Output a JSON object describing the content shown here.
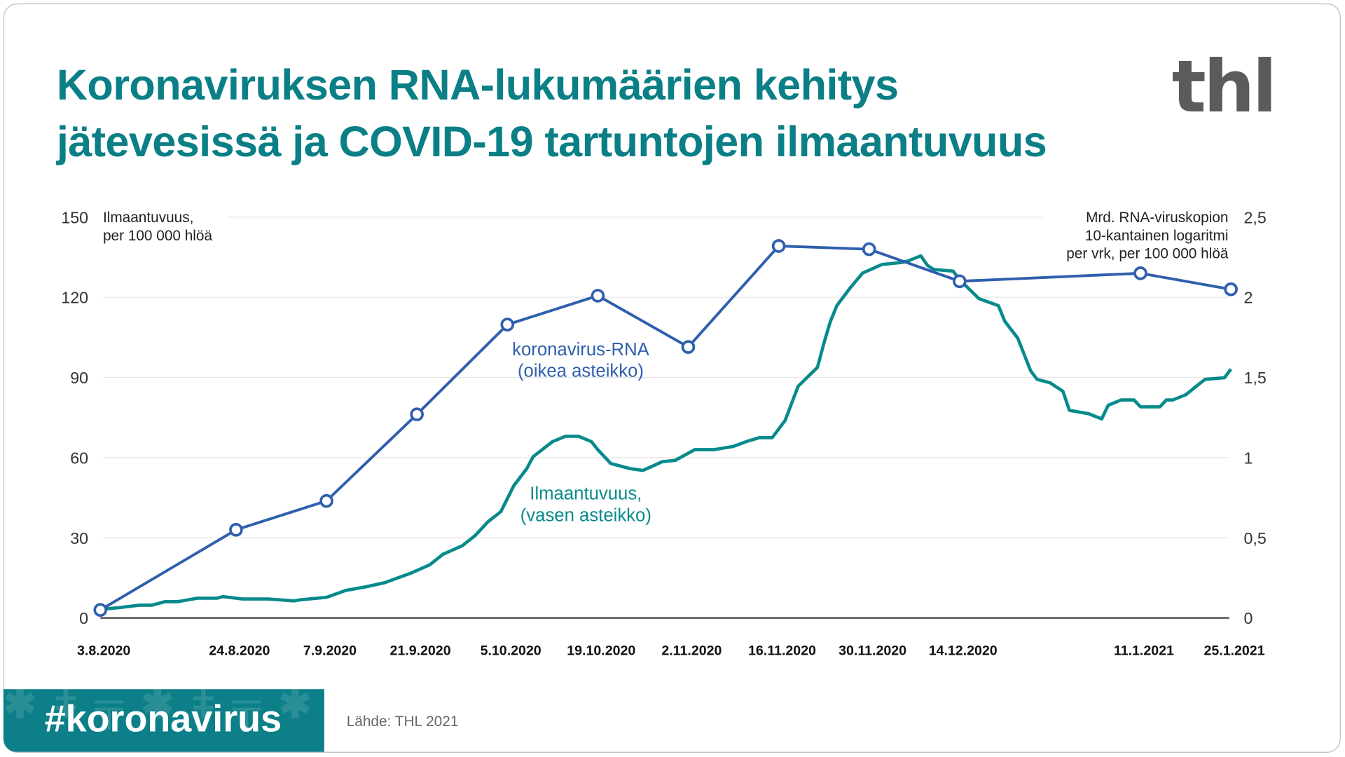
{
  "title_lines": [
    "Koronaviruksen RNA-lukumäärien kehitys",
    "jätevesissä ja COVID-19 tartuntojen ilmaantuvuus"
  ],
  "logo": "thl",
  "footer": {
    "hashtag": "#koronavirus",
    "source": "Lähde: THL 2021"
  },
  "colors": {
    "title": "#0b7f86",
    "rna": "#2f5fad",
    "incidence": "#088a8c",
    "footer_bg": "#0c7f88",
    "logo": "#5b5b5b"
  },
  "chart_data": {
    "type": "line",
    "xlim": [
      "2020-08-03",
      "2021-01-25"
    ],
    "x_tick_labels": [
      {
        "date": "2020-08-03",
        "label": "3.8.2020"
      },
      {
        "date": "2020-08-24",
        "label": "24.8.2020"
      },
      {
        "date": "2020-09-07",
        "label": "7.9.2020"
      },
      {
        "date": "2020-09-21",
        "label": "21.9.2020"
      },
      {
        "date": "2020-10-05",
        "label": "5.10.2020"
      },
      {
        "date": "2020-10-19",
        "label": "19.10.2020"
      },
      {
        "date": "2020-11-02",
        "label": "2.11.2020"
      },
      {
        "date": "2020-11-16",
        "label": "16.11.2020"
      },
      {
        "date": "2020-11-30",
        "label": "30.11.2020"
      },
      {
        "date": "2020-12-14",
        "label": "14.12.2020"
      },
      {
        "date": "2021-01-11",
        "label": "11.1.2021"
      },
      {
        "date": "2021-01-25",
        "label": "25.1.2021"
      }
    ],
    "y_left": {
      "title_lines": [
        "Ilmaantuvuus,",
        "per 100 000 hlöä"
      ],
      "ylim": [
        0,
        150
      ],
      "ticks": [
        "0",
        "30",
        "60",
        "90",
        "120",
        "150"
      ]
    },
    "y_right": {
      "title_lines": [
        "Mrd. RNA-viruskopion",
        "10-kantainen logaritmi",
        "per vrk, per 100 000 hlöä"
      ],
      "ylim": [
        0,
        2.5
      ],
      "ticks": [
        "0",
        "0,5",
        "1",
        "1,5",
        "2",
        "2,5"
      ]
    },
    "grid": true,
    "series": [
      {
        "name": "koronavirus-RNA",
        "label_lines": [
          "koronavirus-RNA",
          "(oikea asteikko)"
        ],
        "axis": "right",
        "markers": true,
        "points": [
          [
            "2020-08-03",
            0.05
          ],
          [
            "2020-08-24",
            0.55
          ],
          [
            "2020-09-07",
            0.73
          ],
          [
            "2020-09-21",
            1.27
          ],
          [
            "2020-10-05",
            1.83
          ],
          [
            "2020-10-19",
            2.01
          ],
          [
            "2020-11-02",
            1.69
          ],
          [
            "2020-11-16",
            2.32
          ],
          [
            "2020-11-30",
            2.3
          ],
          [
            "2020-12-14",
            2.1
          ],
          [
            "2021-01-11",
            2.15
          ],
          [
            "2021-01-25",
            2.05
          ]
        ]
      },
      {
        "name": "Ilmaantuvuus",
        "label_lines": [
          "Ilmaantuvuus,",
          "(vasen asteikko)"
        ],
        "axis": "left",
        "markers": false,
        "points": [
          [
            "2020-08-03",
            3.2
          ],
          [
            "2020-08-06",
            3.9
          ],
          [
            "2020-08-09",
            4.8
          ],
          [
            "2020-08-11",
            4.8
          ],
          [
            "2020-08-13",
            6.1
          ],
          [
            "2020-08-15",
            6.1
          ],
          [
            "2020-08-18",
            7.4
          ],
          [
            "2020-08-21",
            7.4
          ],
          [
            "2020-08-22",
            8.0
          ],
          [
            "2020-08-25",
            7.1
          ],
          [
            "2020-08-29",
            7.1
          ],
          [
            "2020-09-02",
            6.4
          ],
          [
            "2020-09-03",
            6.8
          ],
          [
            "2020-09-07",
            7.7
          ],
          [
            "2020-09-10",
            10.3
          ],
          [
            "2020-09-13",
            11.6
          ],
          [
            "2020-09-16",
            13.2
          ],
          [
            "2020-09-20",
            16.7
          ],
          [
            "2020-09-23",
            19.9
          ],
          [
            "2020-09-25",
            23.8
          ],
          [
            "2020-09-28",
            27.0
          ],
          [
            "2020-09-30",
            30.8
          ],
          [
            "2020-10-02",
            36.0
          ],
          [
            "2020-10-04",
            39.8
          ],
          [
            "2020-10-06",
            49.5
          ],
          [
            "2020-10-08",
            55.9
          ],
          [
            "2020-10-09",
            60.4
          ],
          [
            "2020-10-12",
            66.0
          ],
          [
            "2020-10-14",
            68.0
          ],
          [
            "2020-10-16",
            68.0
          ],
          [
            "2020-10-18",
            66.0
          ],
          [
            "2020-10-19",
            63.0
          ],
          [
            "2020-10-21",
            57.8
          ],
          [
            "2020-10-24",
            55.9
          ],
          [
            "2020-10-26",
            55.2
          ],
          [
            "2020-10-29",
            58.5
          ],
          [
            "2020-10-31",
            59.0
          ],
          [
            "2020-11-03",
            63.0
          ],
          [
            "2020-11-06",
            63.0
          ],
          [
            "2020-11-09",
            64.2
          ],
          [
            "2020-11-11",
            66.0
          ],
          [
            "2020-11-13",
            67.5
          ],
          [
            "2020-11-15",
            67.5
          ],
          [
            "2020-11-17",
            73.9
          ],
          [
            "2020-11-19",
            86.7
          ],
          [
            "2020-11-22",
            93.8
          ],
          [
            "2020-11-23",
            102.8
          ],
          [
            "2020-11-24",
            111.0
          ],
          [
            "2020-11-25",
            116.9
          ],
          [
            "2020-11-27",
            123.3
          ],
          [
            "2020-11-29",
            129.1
          ],
          [
            "2020-12-02",
            132.3
          ],
          [
            "2020-12-05",
            133.0
          ],
          [
            "2020-12-06",
            133.6
          ],
          [
            "2020-12-08",
            135.5
          ],
          [
            "2020-12-09",
            132.0
          ],
          [
            "2020-12-10",
            130.4
          ],
          [
            "2020-12-13",
            129.8
          ],
          [
            "2020-12-14",
            126.6
          ],
          [
            "2020-12-17",
            119.5
          ],
          [
            "2020-12-20",
            116.9
          ],
          [
            "2020-12-21",
            111.0
          ],
          [
            "2020-12-23",
            104.7
          ],
          [
            "2020-12-25",
            92.5
          ],
          [
            "2020-12-26",
            89.3
          ],
          [
            "2020-12-28",
            88.0
          ],
          [
            "2020-12-30",
            84.8
          ],
          [
            "2020-12-31",
            77.7
          ],
          [
            "2021-01-03",
            76.4
          ],
          [
            "2021-01-05",
            74.5
          ],
          [
            "2021-01-06",
            79.6
          ],
          [
            "2021-01-08",
            81.6
          ],
          [
            "2021-01-10",
            81.6
          ],
          [
            "2021-01-11",
            79.0
          ],
          [
            "2021-01-14",
            79.0
          ],
          [
            "2021-01-15",
            81.6
          ],
          [
            "2021-01-16",
            81.6
          ],
          [
            "2021-01-18",
            83.5
          ],
          [
            "2021-01-20",
            87.4
          ],
          [
            "2021-01-21",
            89.3
          ],
          [
            "2021-01-24",
            89.9
          ],
          [
            "2021-01-25",
            93.1
          ]
        ]
      }
    ]
  }
}
